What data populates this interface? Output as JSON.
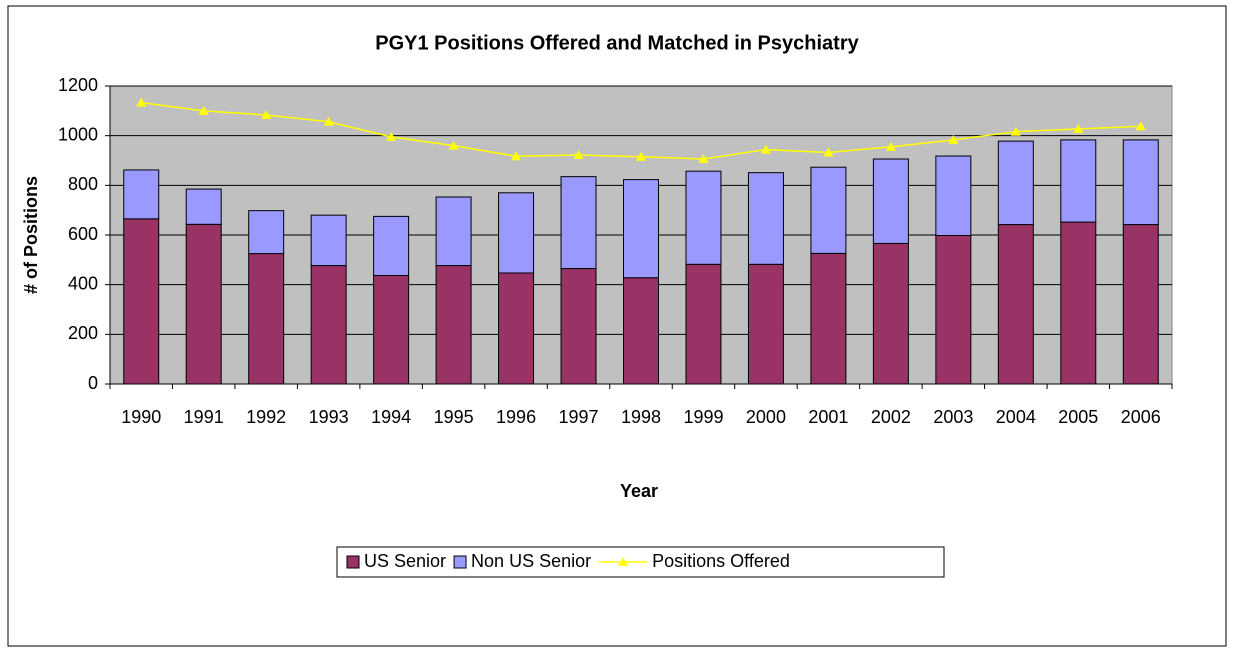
{
  "chart_data": {
    "type": "stacked_bar_line",
    "title": "PGY1 Positions Offered and Matched in Psychiatry",
    "x_label": "Year",
    "y_label": "# of Positions",
    "categories": [
      "1990",
      "1991",
      "1992",
      "1993",
      "1994",
      "1995",
      "1996",
      "1997",
      "1998",
      "1999",
      "2000",
      "2001",
      "2002",
      "2003",
      "2004",
      "2005",
      "2006"
    ],
    "series": [
      {
        "name": "US Senior",
        "color": "#993366",
        "kind": "bar",
        "values": [
          665,
          643,
          525,
          477,
          437,
          477,
          447,
          465,
          428,
          482,
          482,
          526,
          566,
          598,
          642,
          652,
          642
        ]
      },
      {
        "name": "Non US Senior",
        "color": "#9999ff",
        "kind": "bar",
        "values": [
          197,
          142,
          173,
          203,
          238,
          276,
          323,
          370,
          395,
          375,
          369,
          347,
          340,
          320,
          336,
          331,
          341
        ]
      },
      {
        "name": "Positions Offered",
        "color": "#ffff00",
        "kind": "line",
        "values": [
          1133,
          1100,
          1083,
          1056,
          995,
          960,
          917,
          922,
          915,
          906,
          944,
          932,
          955,
          983,
          1016,
          1027,
          1038
        ]
      }
    ],
    "ylim": [
      0,
      1200
    ],
    "yticks": [
      0,
      200,
      400,
      600,
      800,
      1000,
      1200
    ],
    "grid": true,
    "legend": "bottom"
  }
}
